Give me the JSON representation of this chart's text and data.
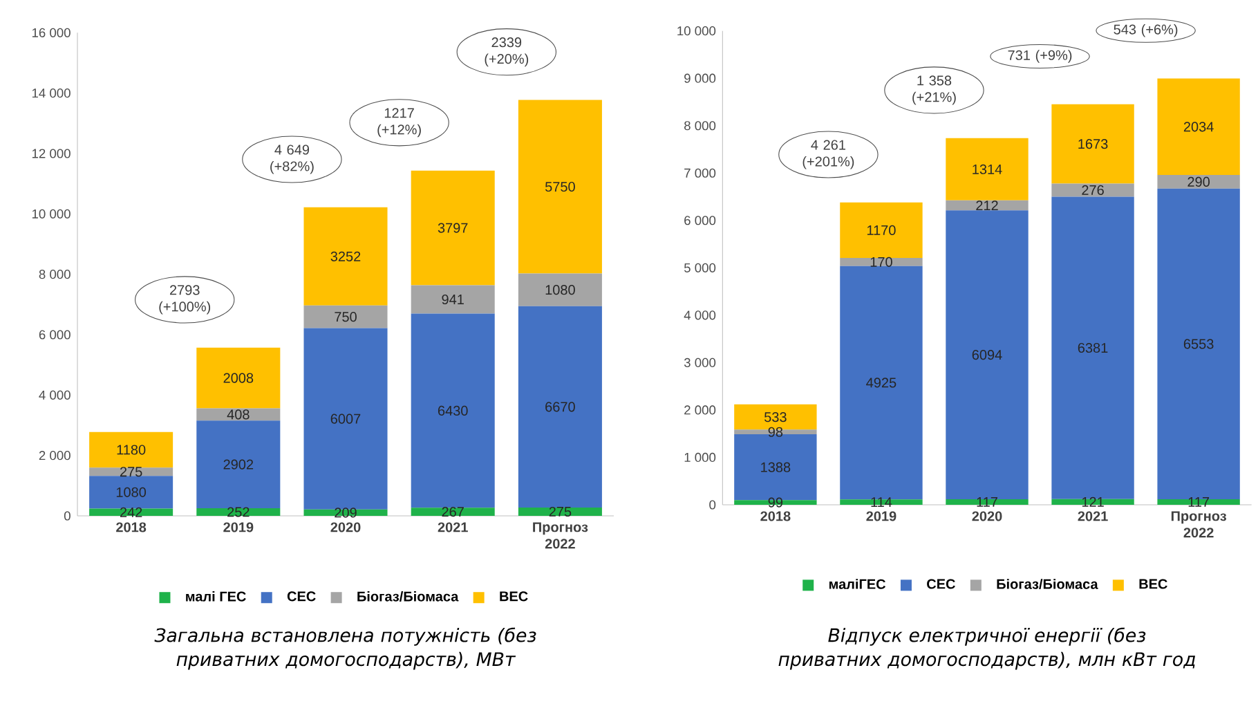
{
  "chart_data": [
    {
      "type": "bar",
      "stacked": true,
      "title": "Загальна встановлена потужність (без приватних домогосподарств), МВт",
      "categories": [
        "2018",
        "2019",
        "2020",
        "2021",
        "Прогноз 2022"
      ],
      "series": [
        {
          "name": "малі ГЕС",
          "color": "#1fb24a",
          "values": [
            242,
            252,
            209,
            267,
            275
          ]
        },
        {
          "name": "СЕС",
          "color": "#4472c4",
          "values": [
            1080,
            2902,
            6007,
            6430,
            6670
          ]
        },
        {
          "name": "Біогаз/Біомаса",
          "color": "#a5a5a5",
          "values": [
            275,
            408,
            750,
            941,
            1080
          ]
        },
        {
          "name": "ВЕС",
          "color": "#ffc000",
          "values": [
            1180,
            2008,
            3252,
            3797,
            5750
          ]
        }
      ],
      "ylim": [
        0,
        16000
      ],
      "yticks": [
        0,
        {
          "value": 2000,
          "label": "2 000"
        },
        {
          "value": 4000,
          "label": "4 000"
        },
        {
          "value": 6000,
          "label": "6 000"
        },
        {
          "value": 8000,
          "label": "8 000"
        },
        {
          "value": 10000,
          "label": "10 000"
        },
        {
          "value": 12000,
          "label": "12 000"
        },
        {
          "value": 14000,
          "label": "14 000"
        },
        {
          "value": 16000,
          "label": "16 000"
        }
      ],
      "data_labels": true,
      "legend": "bottom",
      "annotations": [
        "2793 (+100%)",
        "4 649 (+82%)",
        "1217 (+12%)",
        "2339 (+20%)"
      ]
    },
    {
      "type": "bar",
      "stacked": true,
      "title": "Відпуск електричної енергії (без приватних домогосподарств), млн кВт год",
      "categories": [
        "2018",
        "2019",
        "2020",
        "2021",
        "Прогноз 2022"
      ],
      "series": [
        {
          "name": "маліГЕС",
          "color": "#1fb24a",
          "values": [
            99,
            114,
            117,
            121,
            117
          ]
        },
        {
          "name": "СЕС",
          "color": "#4472c4",
          "values": [
            1388,
            4925,
            6094,
            6381,
            6553
          ]
        },
        {
          "name": "Біогаз/Біомаса",
          "color": "#a5a5a5",
          "values": [
            98,
            170,
            212,
            276,
            290
          ]
        },
        {
          "name": "ВЕС",
          "color": "#ffc000",
          "values": [
            533,
            1170,
            1314,
            1673,
            2034
          ]
        }
      ],
      "ylim": [
        0,
        10000
      ],
      "yticks": [
        0,
        {
          "value": 1000,
          "label": "1 000"
        },
        {
          "value": 2000,
          "label": "2 000"
        },
        {
          "value": 3000,
          "label": "3 000"
        },
        {
          "value": 4000,
          "label": "4 000"
        },
        {
          "value": 5000,
          "label": "5 000"
        },
        {
          "value": 6000,
          "label": "6 000"
        },
        {
          "value": 7000,
          "label": "7 000"
        },
        {
          "value": 8000,
          "label": "8 000"
        },
        {
          "value": 9000,
          "label": "9 000"
        },
        {
          "value": 10000,
          "label": "10 000"
        }
      ],
      "data_labels": true,
      "legend": "bottom",
      "annotations": [
        "4 261 (+201%)",
        "1 358 (+21%)",
        "731 (+9%)",
        "543 (+6%)"
      ]
    }
  ]
}
